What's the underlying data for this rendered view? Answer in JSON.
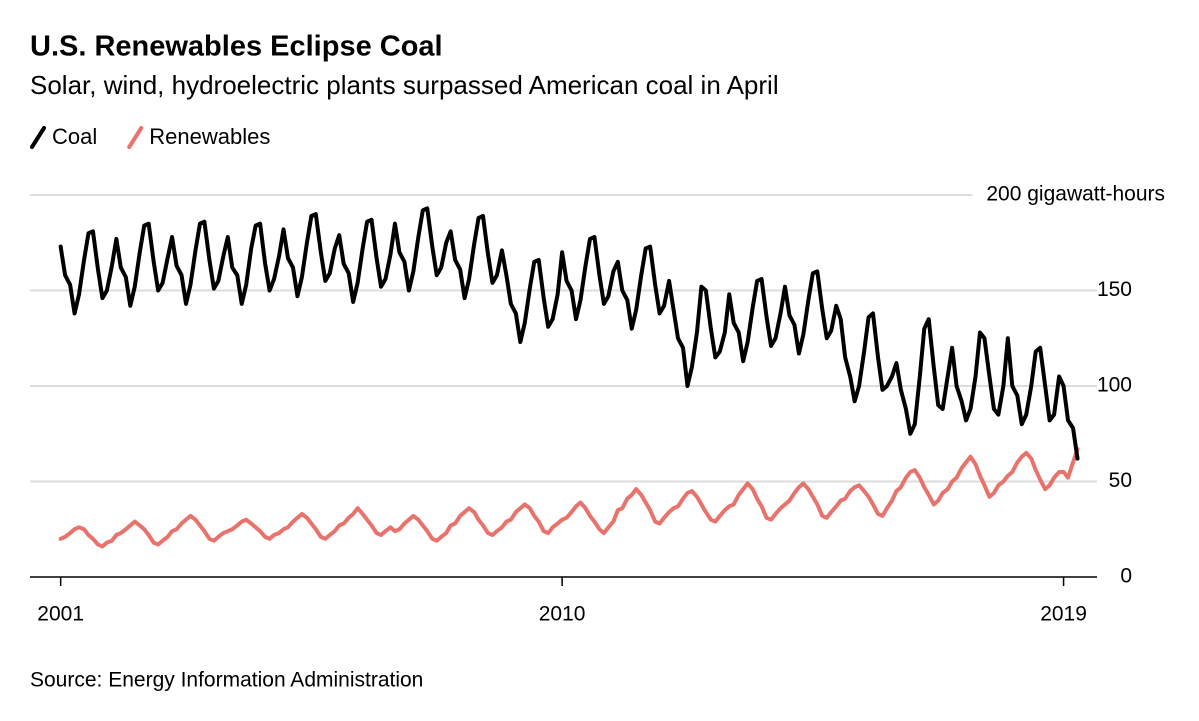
{
  "chart_data": {
    "type": "line",
    "title": "U.S. Renewables Eclipse Coal",
    "subtitle": "Solar, wind, hydroelectric plants surpassed American coal in April",
    "source": "Source: Energy Information Administration",
    "x": [
      2001,
      2001.08,
      2001.17,
      2001.25,
      2001.33,
      2001.42,
      2001.5,
      2001.58,
      2001.67,
      2001.75,
      2001.83,
      2001.92,
      2002,
      2002.08,
      2002.17,
      2002.25,
      2002.33,
      2002.42,
      2002.5,
      2002.58,
      2002.67,
      2002.75,
      2002.83,
      2002.92,
      2003,
      2003.08,
      2003.17,
      2003.25,
      2003.33,
      2003.42,
      2003.5,
      2003.58,
      2003.67,
      2003.75,
      2003.83,
      2003.92,
      2004,
      2004.08,
      2004.17,
      2004.25,
      2004.33,
      2004.42,
      2004.5,
      2004.58,
      2004.67,
      2004.75,
      2004.83,
      2004.92,
      2005,
      2005.08,
      2005.17,
      2005.25,
      2005.33,
      2005.42,
      2005.5,
      2005.58,
      2005.67,
      2005.75,
      2005.83,
      2005.92,
      2006,
      2006.08,
      2006.17,
      2006.25,
      2006.33,
      2006.42,
      2006.5,
      2006.58,
      2006.67,
      2006.75,
      2006.83,
      2006.92,
      2007,
      2007.08,
      2007.17,
      2007.25,
      2007.33,
      2007.42,
      2007.5,
      2007.58,
      2007.67,
      2007.75,
      2007.83,
      2007.92,
      2008,
      2008.08,
      2008.17,
      2008.25,
      2008.33,
      2008.42,
      2008.5,
      2008.58,
      2008.67,
      2008.75,
      2008.83,
      2008.92,
      2009,
      2009.08,
      2009.17,
      2009.25,
      2009.33,
      2009.42,
      2009.5,
      2009.58,
      2009.67,
      2009.75,
      2009.83,
      2009.92,
      2010,
      2010.08,
      2010.17,
      2010.25,
      2010.33,
      2010.42,
      2010.5,
      2010.58,
      2010.67,
      2010.75,
      2010.83,
      2010.92,
      2011,
      2011.08,
      2011.17,
      2011.25,
      2011.33,
      2011.42,
      2011.5,
      2011.58,
      2011.67,
      2011.75,
      2011.83,
      2011.92,
      2012,
      2012.08,
      2012.17,
      2012.25,
      2012.33,
      2012.42,
      2012.5,
      2012.58,
      2012.67,
      2012.75,
      2012.83,
      2012.92,
      2013,
      2013.08,
      2013.17,
      2013.25,
      2013.33,
      2013.42,
      2013.5,
      2013.58,
      2013.67,
      2013.75,
      2013.83,
      2013.92,
      2014,
      2014.08,
      2014.17,
      2014.25,
      2014.33,
      2014.42,
      2014.5,
      2014.58,
      2014.67,
      2014.75,
      2014.83,
      2014.92,
      2015,
      2015.08,
      2015.17,
      2015.25,
      2015.33,
      2015.42,
      2015.5,
      2015.58,
      2015.67,
      2015.75,
      2015.83,
      2015.92,
      2016,
      2016.08,
      2016.17,
      2016.25,
      2016.33,
      2016.42,
      2016.5,
      2016.58,
      2016.67,
      2016.75,
      2016.83,
      2016.92,
      2017,
      2017.08,
      2017.17,
      2017.25,
      2017.33,
      2017.42,
      2017.5,
      2017.58,
      2017.67,
      2017.75,
      2017.83,
      2017.92,
      2018,
      2018.08,
      2018.17,
      2018.25,
      2018.33,
      2018.42,
      2018.5,
      2018.58,
      2018.67,
      2018.75,
      2018.83,
      2018.92,
      2019,
      2019.08,
      2019.17,
      2019.25
    ],
    "series": [
      {
        "name": "Coal",
        "color": "#000000",
        "values": [
          173,
          158,
          153,
          138,
          148,
          166,
          180,
          181,
          161,
          146,
          150,
          163,
          177,
          162,
          157,
          142,
          152,
          170,
          184,
          185,
          165,
          150,
          154,
          167,
          178,
          163,
          158,
          143,
          153,
          171,
          185,
          186,
          166,
          151,
          155,
          168,
          178,
          162,
          158,
          143,
          153,
          172,
          184,
          185,
          164,
          150,
          156,
          168,
          182,
          167,
          162,
          147,
          157,
          175,
          189,
          190,
          170,
          155,
          159,
          172,
          179,
          164,
          159,
          144,
          154,
          172,
          186,
          187,
          167,
          152,
          156,
          169,
          185,
          170,
          165,
          150,
          160,
          178,
          192,
          193,
          173,
          158,
          162,
          175,
          181,
          166,
          161,
          146,
          156,
          174,
          188,
          189,
          169,
          154,
          158,
          171,
          158,
          143,
          138,
          123,
          133,
          151,
          165,
          166,
          146,
          131,
          135,
          148,
          170,
          155,
          150,
          135,
          145,
          163,
          177,
          178,
          158,
          143,
          147,
          160,
          165,
          150,
          145,
          130,
          140,
          158,
          172,
          173,
          153,
          138,
          142,
          155,
          140,
          125,
          120,
          100,
          110,
          128,
          152,
          150,
          130,
          115,
          118,
          128,
          148,
          133,
          128,
          113,
          123,
          141,
          155,
          156,
          136,
          121,
          125,
          138,
          152,
          137,
          132,
          117,
          127,
          145,
          159,
          160,
          140,
          125,
          129,
          142,
          135,
          115,
          105,
          92,
          100,
          118,
          136,
          138,
          115,
          98,
          100,
          105,
          112,
          98,
          88,
          75,
          80,
          105,
          130,
          135,
          110,
          90,
          88,
          105,
          120,
          100,
          92,
          82,
          88,
          105,
          128,
          125,
          105,
          88,
          85,
          100,
          125,
          100,
          95,
          80,
          85,
          100,
          118,
          120,
          100,
          82,
          85,
          105,
          100,
          82,
          78,
          62
        ]
      },
      {
        "name": "Renewables",
        "color": "#e8736c",
        "values": [
          20,
          21,
          23,
          25,
          26,
          25,
          22,
          20,
          17,
          16,
          18,
          19,
          22,
          23,
          25,
          27,
          29,
          27,
          25,
          22,
          18,
          17,
          19,
          21,
          24,
          25,
          28,
          30,
          32,
          30,
          27,
          24,
          20,
          19,
          21,
          23,
          24,
          25,
          27,
          29,
          30,
          28,
          26,
          24,
          21,
          20,
          22,
          23,
          25,
          26,
          29,
          31,
          33,
          31,
          28,
          25,
          21,
          20,
          22,
          24,
          27,
          28,
          31,
          33,
          36,
          33,
          30,
          27,
          23,
          22,
          24,
          26,
          24,
          25,
          28,
          30,
          32,
          30,
          27,
          24,
          20,
          19,
          21,
          23,
          27,
          28,
          32,
          34,
          36,
          34,
          30,
          27,
          23,
          22,
          24,
          26,
          29,
          30,
          34,
          36,
          38,
          36,
          32,
          29,
          24,
          23,
          26,
          28,
          30,
          31,
          34,
          37,
          39,
          36,
          32,
          29,
          25,
          23,
          26,
          29,
          35,
          36,
          41,
          43,
          46,
          43,
          39,
          35,
          29,
          28,
          31,
          34,
          36,
          37,
          41,
          44,
          45,
          42,
          38,
          34,
          30,
          29,
          32,
          35,
          37,
          38,
          43,
          46,
          49,
          46,
          41,
          37,
          31,
          30,
          33,
          36,
          38,
          40,
          44,
          47,
          49,
          46,
          42,
          38,
          32,
          31,
          34,
          37,
          40,
          41,
          45,
          47,
          48,
          45,
          42,
          38,
          33,
          32,
          36,
          40,
          45,
          47,
          52,
          55,
          56,
          52,
          47,
          43,
          38,
          40,
          44,
          46,
          50,
          52,
          57,
          60,
          63,
          59,
          53,
          48,
          42,
          44,
          48,
          50,
          53,
          55,
          60,
          63,
          65,
          62,
          56,
          51,
          46,
          48,
          52,
          55,
          55,
          52,
          60,
          67
        ]
      }
    ],
    "xlim": [
      2000.45,
      2019.6
    ],
    "xticks": [
      2001,
      2010,
      2019
    ],
    "ylim": [
      0,
      200
    ],
    "yticks": [
      0,
      50,
      100,
      150,
      {
        "value": 200,
        "label": "200 gigawatt-hours"
      }
    ],
    "grid": true
  }
}
